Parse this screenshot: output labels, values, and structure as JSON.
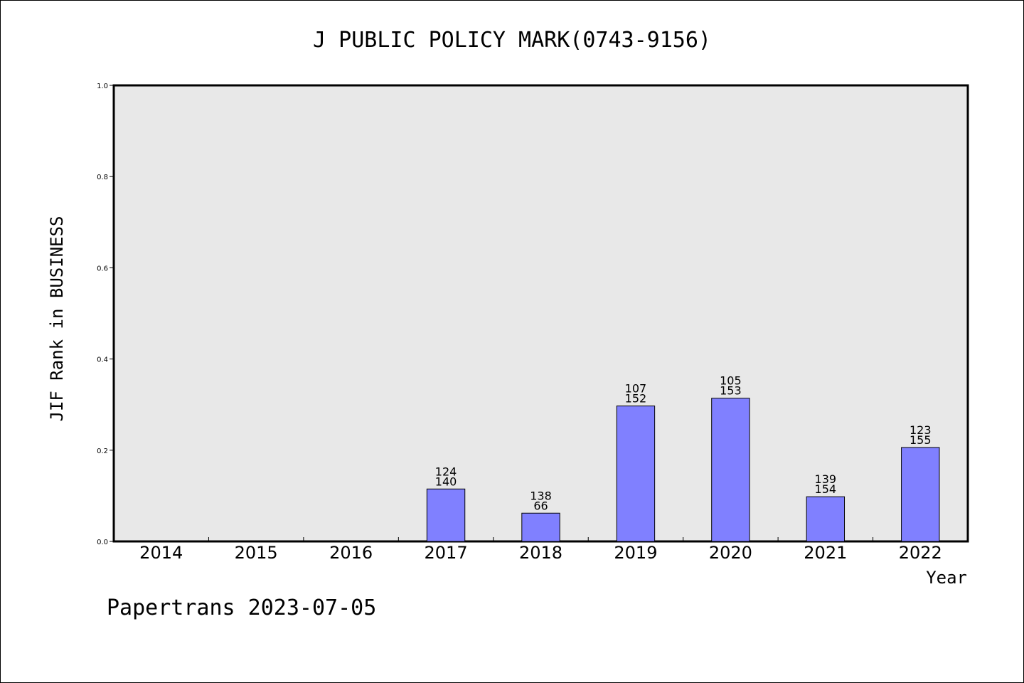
{
  "chart_data": {
    "type": "bar",
    "title": "J PUBLIC POLICY MARK(0743-9156)",
    "xlabel": "Year",
    "ylabel": "JIF Rank in BUSINESS",
    "footer": "Papertrans 2023-07-05",
    "ylim": [
      0,
      1.0
    ],
    "yticks": [
      "0.0",
      "0.2",
      "0.4",
      "0.6",
      "0.8",
      "1.0"
    ],
    "categories": [
      "2014",
      "2015",
      "2016",
      "2017",
      "2018",
      "2019",
      "2020",
      "2021",
      "2022"
    ],
    "values": [
      0,
      0,
      0,
      0.115,
      0.062,
      0.297,
      0.314,
      0.098,
      0.206
    ],
    "labels_top": [
      "",
      "",
      "",
      "124",
      "138",
      "107",
      "105",
      "139",
      "123"
    ],
    "labels_bottom": [
      "",
      "",
      "",
      "140",
      "66",
      "152",
      "153",
      "154",
      "155"
    ],
    "bar_color": "#8080ff",
    "plot_background": "#e8e8e8",
    "grid": false
  }
}
